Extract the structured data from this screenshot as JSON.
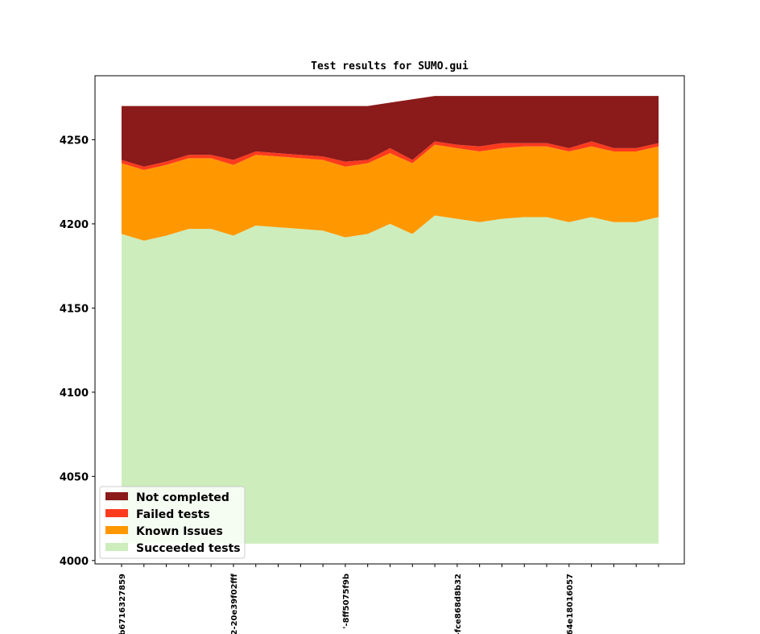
{
  "chart_data": {
    "type": "area",
    "stacked": true,
    "title": "Test results for SUMO.gui",
    "xlabel": "",
    "ylabel": "",
    "ylim": [
      3998,
      4288
    ],
    "yticks": [
      4000,
      4050,
      4100,
      4150,
      4200,
      4250
    ],
    "area_baseline": 4010,
    "x_tick_labels": [
      {
        "index": 0,
        "label": "b6716327859"
      },
      {
        "index": 5,
        "label": "2-20e39f02fff"
      },
      {
        "index": 10,
        "label": "'-8ff5075f9b"
      },
      {
        "index": 15,
        "label": "-fce868d8b32"
      },
      {
        "index": 20,
        "label": "64e18016057"
      }
    ],
    "series": [
      {
        "name": "Succeeded tests",
        "color": "#cdedbd",
        "values": [
          4194,
          4190,
          4193,
          4197,
          4197,
          4193,
          4199,
          4198,
          4197,
          4196,
          4192,
          4194,
          4200,
          4194,
          4205,
          4203,
          4201,
          4203,
          4204,
          4204,
          4201,
          4204,
          4201,
          4201,
          4204
        ]
      },
      {
        "name": "Known Issues",
        "color": "#ff9800",
        "values": [
          4236,
          4232,
          4235,
          4239,
          4239,
          4235,
          4241,
          4240,
          4239,
          4238,
          4234,
          4236,
          4242,
          4236,
          4247,
          4245,
          4243,
          4245,
          4246,
          4246,
          4243,
          4246,
          4243,
          4243,
          4246
        ]
      },
      {
        "name": "Failed tests",
        "color": "#fc3a1e",
        "values": [
          4238,
          4234,
          4237,
          4241,
          4241,
          4238,
          4243,
          4242,
          4241,
          4240,
          4237,
          4238,
          4245,
          4238,
          4249,
          4247,
          4246,
          4248,
          4248,
          4248,
          4245,
          4249,
          4245,
          4245,
          4248
        ]
      },
      {
        "name": "Not completed",
        "color": "#8b1a1a",
        "values": [
          4270,
          4270,
          4270,
          4270,
          4270,
          4270,
          4270,
          4270,
          4270,
          4270,
          4270,
          4270,
          4272,
          4274,
          4276,
          4276,
          4276,
          4276,
          4276,
          4276,
          4276,
          4276,
          4276,
          4276,
          4276
        ]
      }
    ],
    "legend": [
      "Not completed",
      "Failed tests",
      "Known Issues",
      "Succeeded tests"
    ],
    "legend_position": "lower-left",
    "grid": false
  }
}
